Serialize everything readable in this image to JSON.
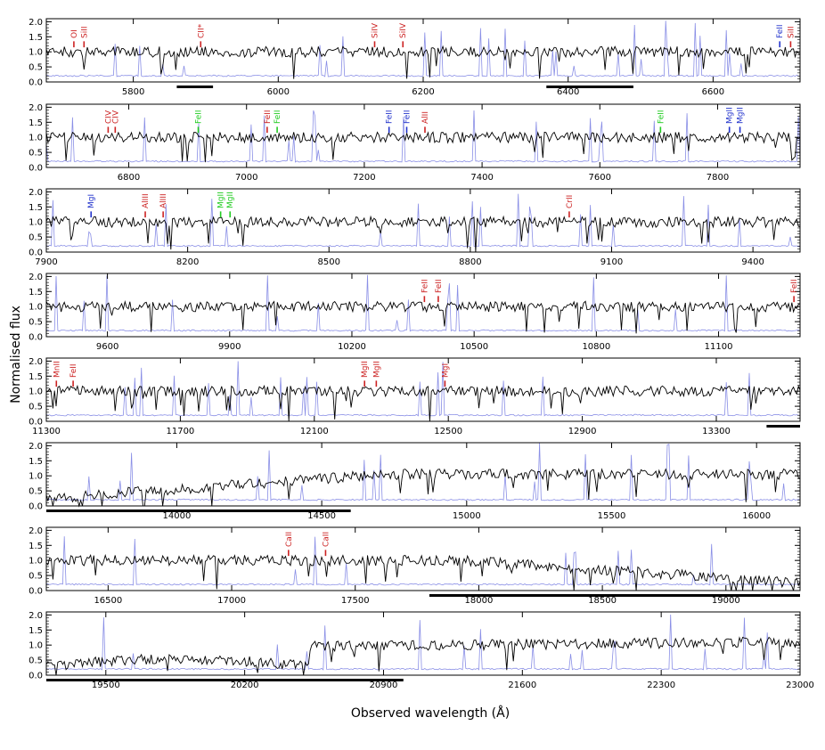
{
  "chart_data": {
    "type": "line",
    "title": "",
    "ylabel": "Normalised flux",
    "xlabel": "Observed wavelength (Å)",
    "ylim": [
      0,
      2.1
    ],
    "yticks": [
      0.0,
      0.5,
      1.0,
      1.5,
      2.0
    ],
    "ytick_labels": [
      "0.0",
      "0.5",
      "1.0",
      "1.5",
      "2.0"
    ],
    "series": [
      {
        "key": "spectrum",
        "color": "#000000"
      },
      {
        "key": "sky",
        "color": "#8a8fe6"
      }
    ],
    "colors": {
      "red": "#cc2222",
      "blue": "#2233cc",
      "green": "#22cc22",
      "telluric_bar": "#000000"
    },
    "panels": [
      {
        "xlim": [
          5680,
          6720
        ],
        "xticks": [
          5800,
          6000,
          6200,
          6400,
          6600
        ],
        "tick_labels": [
          "5800",
          "6000",
          "6200",
          "6400",
          "6600"
        ],
        "telluric_bands": [
          [
            5860,
            5910
          ],
          [
            6370,
            6490
          ]
        ],
        "lines": [
          {
            "label": "OI",
            "wavelength": 5718,
            "color": "red"
          },
          {
            "label": "SiII",
            "wavelength": 5732,
            "color": "red"
          },
          {
            "label": "CII*",
            "wavelength": 5893,
            "color": "red"
          },
          {
            "label": "SiIV",
            "wavelength": 6133,
            "color": "red"
          },
          {
            "label": "SiIV",
            "wavelength": 6172,
            "color": "red"
          },
          {
            "label": "FeII",
            "wavelength": 6692,
            "color": "blue"
          },
          {
            "label": "SiII",
            "wavelength": 6707,
            "color": "red"
          }
        ]
      },
      {
        "xlim": [
          6660,
          7940
        ],
        "xticks": [
          6800,
          7000,
          7200,
          7400,
          7600,
          7800
        ],
        "tick_labels": [
          "6800",
          "7000",
          "7200",
          "7400",
          "7600",
          "7800"
        ],
        "telluric_bands": [],
        "lines": [
          {
            "label": "CIV",
            "wavelength": 6765,
            "color": "red"
          },
          {
            "label": "CIV",
            "wavelength": 6777,
            "color": "red"
          },
          {
            "label": "FeII",
            "wavelength": 6918,
            "color": "green"
          },
          {
            "label": "FeII",
            "wavelength": 7035,
            "color": "red"
          },
          {
            "label": "FeII",
            "wavelength": 7052,
            "color": "green"
          },
          {
            "label": "FeII",
            "wavelength": 7242,
            "color": "blue"
          },
          {
            "label": "FeII",
            "wavelength": 7272,
            "color": "blue"
          },
          {
            "label": "AlII",
            "wavelength": 7303,
            "color": "red"
          },
          {
            "label": "FeII",
            "wavelength": 7703,
            "color": "green"
          },
          {
            "label": "MgII",
            "wavelength": 7820,
            "color": "blue"
          },
          {
            "label": "MgII",
            "wavelength": 7838,
            "color": "blue"
          }
        ]
      },
      {
        "xlim": [
          7900,
          9500
        ],
        "xticks": [
          7900,
          8200,
          8500,
          8800,
          9100,
          9400
        ],
        "tick_labels": [
          "7900",
          "8200",
          "8500",
          "8800",
          "9100",
          "9400"
        ],
        "telluric_bands": [],
        "lines": [
          {
            "label": "MgI",
            "wavelength": 7995,
            "color": "blue"
          },
          {
            "label": "AlIII",
            "wavelength": 8110,
            "color": "red"
          },
          {
            "label": "AlIII",
            "wavelength": 8148,
            "color": "red"
          },
          {
            "label": "MgII",
            "wavelength": 8270,
            "color": "green"
          },
          {
            "label": "MgII",
            "wavelength": 8290,
            "color": "green"
          },
          {
            "label": "CrII",
            "wavelength": 9010,
            "color": "red"
          }
        ]
      },
      {
        "xlim": [
          9450,
          11300
        ],
        "xticks": [
          9600,
          9900,
          10200,
          10500,
          10800,
          11100
        ],
        "tick_labels": [
          "9600",
          "9900",
          "10200",
          "10500",
          "10800",
          "11100"
        ],
        "telluric_bands": [],
        "lines": [
          {
            "label": "FeII",
            "wavelength": 10378,
            "color": "red"
          },
          {
            "label": "FeII",
            "wavelength": 10412,
            "color": "red"
          },
          {
            "label": "FeII",
            "wavelength": 11285,
            "color": "red"
          }
        ]
      },
      {
        "xlim": [
          11300,
          13550
        ],
        "xticks": [
          11300,
          11700,
          12100,
          12500,
          12900,
          13300
        ],
        "tick_labels": [
          "11300",
          "11700",
          "12100",
          "12500",
          "12900",
          "13300"
        ],
        "telluric_bands": [
          [
            13450,
            13550
          ]
        ],
        "lines": [
          {
            "label": "MnII",
            "wavelength": 11330,
            "color": "red"
          },
          {
            "label": "FeII",
            "wavelength": 11380,
            "color": "red"
          },
          {
            "label": "MgII",
            "wavelength": 12250,
            "color": "red"
          },
          {
            "label": "MgII",
            "wavelength": 12285,
            "color": "red"
          },
          {
            "label": "MgI",
            "wavelength": 12490,
            "color": "red"
          }
        ]
      },
      {
        "xlim": [
          13550,
          16150
        ],
        "xticks": [
          14000,
          14500,
          15000,
          15500,
          16000
        ],
        "tick_labels": [
          "14000",
          "14500",
          "15000",
          "15500",
          "16000"
        ],
        "telluric_bands": [
          [
            13550,
            14600
          ]
        ],
        "lines": []
      },
      {
        "xlim": [
          16250,
          19300
        ],
        "xticks": [
          16500,
          17000,
          17500,
          18000,
          18500,
          19000
        ],
        "tick_labels": [
          "16500",
          "17000",
          "17500",
          "18000",
          "18500",
          "19000"
        ],
        "telluric_bands": [
          [
            17800,
            19300
          ]
        ],
        "lines": [
          {
            "label": "CaII",
            "wavelength": 17230,
            "color": "red"
          },
          {
            "label": "CaII",
            "wavelength": 17380,
            "color": "red"
          }
        ]
      },
      {
        "xlim": [
          19200,
          23000
        ],
        "xticks": [
          19500,
          20200,
          20900,
          21600,
          22300,
          23000
        ],
        "tick_labels": [
          "19500",
          "20200",
          "20900",
          "21600",
          "22300",
          "23000"
        ],
        "telluric_bands": [
          [
            19200,
            21000
          ]
        ],
        "lines": []
      }
    ]
  }
}
